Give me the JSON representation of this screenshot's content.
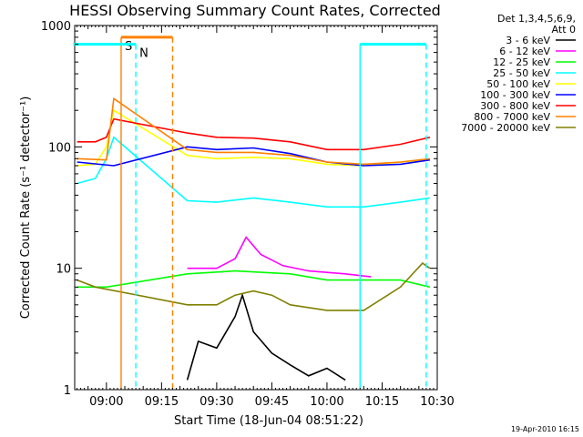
{
  "chart_data": {
    "type": "line",
    "title": "HESSI Observing Summary Count Rates, Corrected",
    "xlabel": "Start Time (18-Jun-04 08:51:22)",
    "ylabel": "Corrected Count Rate (s⁻¹ detector⁻¹)",
    "y_scale": "log",
    "ylim": [
      1,
      1000
    ],
    "xlim": [
      "08:51",
      "10:30"
    ],
    "x_ticks": [
      "09:00",
      "09:15",
      "09:30",
      "09:45",
      "10:00",
      "10:15",
      "10:30"
    ],
    "y_ticks": [
      "1",
      "10",
      "100",
      "1000"
    ],
    "legend_title": [
      "Det 1,3,4,5,6,9,",
      "Att 0"
    ],
    "legend_position": "right",
    "series": [
      {
        "name": "3 - 6 keV",
        "color": "#000000",
        "points": [
          [
            "09:22",
            1.2
          ],
          [
            "09:25",
            2.5
          ],
          [
            "09:30",
            2.2
          ],
          [
            "09:35",
            4
          ],
          [
            "09:37",
            6
          ],
          [
            "09:40",
            3
          ],
          [
            "09:45",
            2
          ],
          [
            "09:50",
            1.6
          ],
          [
            "09:55",
            1.3
          ],
          [
            "10:00",
            1.5
          ],
          [
            "10:05",
            1.2
          ]
        ]
      },
      {
        "name": "6 - 12 keV",
        "color": "#ff00ff",
        "points": [
          [
            "09:22",
            10
          ],
          [
            "09:30",
            10
          ],
          [
            "09:35",
            12
          ],
          [
            "09:38",
            18
          ],
          [
            "09:42",
            13
          ],
          [
            "09:48",
            10.5
          ],
          [
            "09:55",
            9.5
          ],
          [
            "10:05",
            9
          ],
          [
            "10:12",
            8.5
          ]
        ]
      },
      {
        "name": "12 - 25 keV",
        "color": "#00ff00",
        "points": [
          [
            "08:52",
            7
          ],
          [
            "09:00",
            7
          ],
          [
            "09:22",
            9
          ],
          [
            "09:35",
            9.5
          ],
          [
            "09:50",
            9
          ],
          [
            "10:00",
            8
          ],
          [
            "10:10",
            8
          ],
          [
            "10:20",
            8
          ],
          [
            "10:28",
            7
          ]
        ]
      },
      {
        "name": "25 - 50 keV",
        "color": "#00ffff",
        "points": [
          [
            "08:52",
            50
          ],
          [
            "08:57",
            55
          ],
          [
            "09:00",
            80
          ],
          [
            "09:02",
            120
          ],
          [
            "09:22",
            36
          ],
          [
            "09:30",
            35
          ],
          [
            "09:40",
            38
          ],
          [
            "09:50",
            35
          ],
          [
            "10:00",
            32
          ],
          [
            "10:10",
            32
          ],
          [
            "10:20",
            35
          ],
          [
            "10:28",
            38
          ]
        ]
      },
      {
        "name": "50 - 100 keV",
        "color": "#ffff00",
        "points": [
          [
            "08:52",
            70
          ],
          [
            "08:57",
            72
          ],
          [
            "09:00",
            100
          ],
          [
            "09:02",
            200
          ],
          [
            "09:22",
            85
          ],
          [
            "09:30",
            80
          ],
          [
            "09:40",
            82
          ],
          [
            "09:50",
            80
          ],
          [
            "10:00",
            72
          ],
          [
            "10:10",
            70
          ],
          [
            "10:20",
            75
          ],
          [
            "10:28",
            78
          ]
        ]
      },
      {
        "name": "100 - 300 keV",
        "color": "#0000ff",
        "points": [
          [
            "08:52",
            75
          ],
          [
            "09:02",
            70
          ],
          [
            "09:22",
            100
          ],
          [
            "09:30",
            95
          ],
          [
            "09:40",
            98
          ],
          [
            "09:50",
            88
          ],
          [
            "10:00",
            75
          ],
          [
            "10:10",
            70
          ],
          [
            "10:20",
            72
          ],
          [
            "10:28",
            78
          ]
        ]
      },
      {
        "name": "300 - 800 keV",
        "color": "#ff0000",
        "points": [
          [
            "08:52",
            110
          ],
          [
            "08:57",
            110
          ],
          [
            "09:00",
            120
          ],
          [
            "09:02",
            170
          ],
          [
            "09:22",
            130
          ],
          [
            "09:30",
            120
          ],
          [
            "09:40",
            118
          ],
          [
            "09:50",
            110
          ],
          [
            "10:00",
            95
          ],
          [
            "10:10",
            95
          ],
          [
            "10:20",
            105
          ],
          [
            "10:28",
            120
          ]
        ]
      },
      {
        "name": "800 - 7000 keV",
        "color": "#ff8000",
        "points": [
          [
            "08:52",
            80
          ],
          [
            "09:00",
            78
          ],
          [
            "09:02",
            250
          ],
          [
            "09:22",
            95
          ],
          [
            "09:30",
            90
          ],
          [
            "09:40",
            90
          ],
          [
            "09:50",
            85
          ],
          [
            "10:00",
            75
          ],
          [
            "10:10",
            72
          ],
          [
            "10:20",
            75
          ],
          [
            "10:28",
            80
          ]
        ]
      },
      {
        "name": "7000 - 20000 keV",
        "color": "#808000",
        "points": [
          [
            "08:52",
            8
          ],
          [
            "08:57",
            7
          ],
          [
            "09:22",
            5
          ],
          [
            "09:30",
            5
          ],
          [
            "09:35",
            6
          ],
          [
            "09:40",
            6.5
          ],
          [
            "09:45",
            6
          ],
          [
            "09:50",
            5
          ],
          [
            "10:00",
            4.5
          ],
          [
            "10:10",
            4.5
          ],
          [
            "10:20",
            7
          ],
          [
            "10:26",
            11
          ],
          [
            "10:28",
            10
          ]
        ]
      }
    ],
    "attenuator_lines": [
      {
        "label": "N",
        "x": "09:08",
        "color": "#00ffff",
        "style": "dashed",
        "y_top": 700
      },
      {
        "label": "",
        "x": "10:09",
        "color": "#00ffff",
        "style": "solid",
        "y_top": 700
      },
      {
        "label": "",
        "x": "10:27",
        "color": "#00ffff",
        "style": "dashed",
        "y_top": 700
      }
    ],
    "saa_lines": [
      {
        "label": "S",
        "x": "09:04",
        "color": "#ff8000",
        "style": "solid",
        "y_top": 800
      },
      {
        "label": "",
        "x": "09:18",
        "color": "#ff8000",
        "style": "dashed",
        "y_top": 800
      }
    ],
    "segments": [
      {
        "color": "#00ffff",
        "x0": "08:51",
        "x1": "09:08",
        "y": 700
      },
      {
        "color": "#00ffff",
        "x0": "10:09",
        "x1": "10:27",
        "y": 700
      },
      {
        "color": "#ff8000",
        "x0": "09:04",
        "x1": "09:18",
        "y": 800
      }
    ],
    "timestamp": "19-Apr-2010 16:15"
  }
}
